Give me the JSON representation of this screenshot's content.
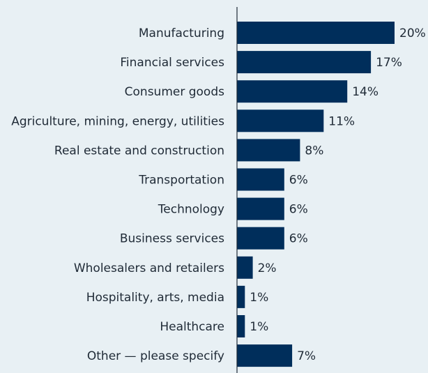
{
  "chart_data": {
    "type": "bar",
    "orientation": "horizontal",
    "title": "",
    "xlabel": "",
    "ylabel": "",
    "categories": [
      "Manufacturing",
      "Financial services",
      "Consumer goods",
      "Agriculture, mining, energy, utilities",
      "Real estate and construction",
      "Transportation",
      "Technology",
      "Business services",
      "Wholesalers and retailers",
      "Hospitality, arts, media",
      "Healthcare",
      "Other — please specify"
    ],
    "values": [
      20,
      17,
      14,
      11,
      8,
      6,
      6,
      6,
      2,
      1,
      1,
      7
    ],
    "value_labels": [
      "20%",
      "17%",
      "14%",
      "11%",
      "8%",
      "6%",
      "6%",
      "6%",
      "2%",
      "1%",
      "1%",
      "7%"
    ],
    "xlim": [
      0,
      20
    ],
    "grid": false,
    "legend": "none",
    "colors": {
      "bar": "#002e5b",
      "background": "#e8f0f4",
      "text": "#1f2a36",
      "axis": "#1f2a36"
    }
  }
}
